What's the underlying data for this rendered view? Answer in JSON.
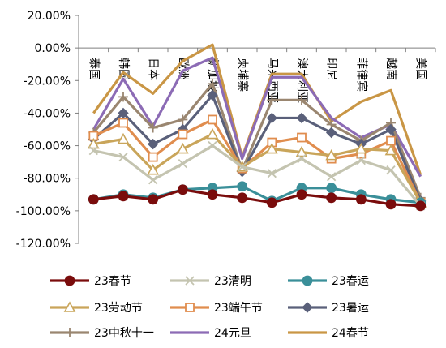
{
  "chart_data": {
    "type": "line",
    "title": "",
    "xlabel": "",
    "ylabel": "",
    "ylim": [
      -120,
      20
    ],
    "yticks": [
      20,
      0,
      -20,
      -40,
      -60,
      -80,
      -100,
      -120
    ],
    "ytick_labels": [
      "20.00%",
      "0.00%",
      "-20.00%",
      "-40.00%",
      "-60.00%",
      "-80.00%",
      "-100.00%",
      "-120.00%"
    ],
    "categories": [
      "泰国",
      "韩国",
      "日本",
      "欧洲",
      "新加坡",
      "柬埔寨",
      "马来西亚",
      "澳大利亚",
      "印尼",
      "菲律宾",
      "越南",
      "美国"
    ],
    "grid": false,
    "legend_position": "bottom",
    "series": [
      {
        "name": "23春节",
        "color": "#7a0c0c",
        "marker": "circle",
        "values": [
          -93,
          -91,
          -93,
          -87,
          -90,
          -92,
          -95,
          -90,
          -92,
          -93,
          -96,
          -97
        ]
      },
      {
        "name": "23清明",
        "color": "#c4c4b0",
        "marker": "x",
        "values": [
          -63,
          -67,
          -81,
          -71,
          -60,
          -73,
          -77,
          -68,
          -79,
          -69,
          -75,
          -97
        ]
      },
      {
        "name": "23春运",
        "color": "#3a8f99",
        "marker": "circle",
        "values": [
          -93,
          -90,
          -92,
          -87,
          -86,
          -85,
          -94,
          -86,
          -86,
          -90,
          -93,
          -95
        ]
      },
      {
        "name": "23劳动节",
        "color": "#c9a55a",
        "marker": "triangle",
        "values": [
          -59,
          -56,
          -75,
          -62,
          -53,
          -73,
          -62,
          -64,
          -66,
          -62,
          -63,
          -95
        ]
      },
      {
        "name": "23端午节",
        "color": "#e08d4e",
        "marker": "square",
        "values": [
          -54,
          -46,
          -67,
          -53,
          -44,
          -74,
          -58,
          -55,
          -68,
          -65,
          -57,
          -95
        ]
      },
      {
        "name": "23暑运",
        "color": "#5a607a",
        "marker": "diamond",
        "values": [
          -56,
          -40,
          -59,
          -50,
          -29,
          -76,
          -43,
          -43,
          -52,
          -59,
          -50,
          -94
        ]
      },
      {
        "name": "23中秋十一",
        "color": "#9a8670",
        "marker": "plus",
        "values": [
          -52,
          -30,
          -49,
          -44,
          -22,
          -75,
          -32,
          -32,
          -47,
          -57,
          -46,
          -92
        ]
      },
      {
        "name": "24元旦",
        "color": "#8c6bb5",
        "marker": "none",
        "values": [
          -50,
          -19,
          -48,
          -14,
          -6,
          -68,
          -18,
          -18,
          -43,
          -55,
          -47,
          -79
        ]
      },
      {
        "name": "24春节",
        "color": "#c99645",
        "marker": "none",
        "values": [
          -40,
          -15,
          -28,
          -8,
          2,
          -67,
          -16,
          -16,
          -45,
          -33,
          -26,
          -78
        ]
      }
    ]
  }
}
